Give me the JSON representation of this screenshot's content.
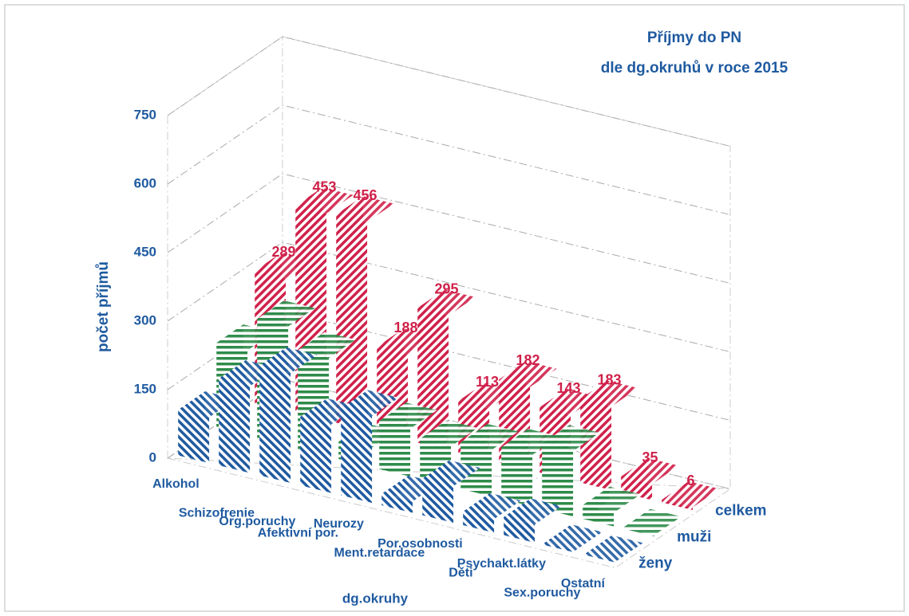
{
  "chart_data": {
    "type": "bar3d",
    "title": "Příjmy do PN",
    "subtitle": "dle dg.okruhů v roce 2015",
    "x_label": "dg.okruhy",
    "y_label": "počet příjmů",
    "categories": [
      "Alkohol",
      "Schizofrenie",
      "Org.poruchy",
      "Afektivní por.",
      "Neurozy",
      "Ment.retardace",
      "Por.osobnosti",
      "Děti",
      "Psychakt.látky",
      "Sex.poruchy",
      "Ostatní"
    ],
    "series": [
      {
        "name": "ženy",
        "color": "#1f5aa0",
        "values": [
          100,
          190,
          240,
          150,
          190,
          25,
          80,
          30,
          40,
          5,
          3
        ]
      },
      {
        "name": "muži",
        "color": "#2e8b4a",
        "values": [
          189,
          263,
          216,
          38,
          105,
          88,
          102,
          113,
          143,
          30,
          3
        ]
      },
      {
        "name": "celkem",
        "color": "#d0214a",
        "values": [
          289,
          453,
          456,
          188,
          295,
          113,
          182,
          143,
          183,
          35,
          6
        ],
        "data_labels": true
      }
    ],
    "ylim": [
      0,
      750
    ],
    "yticks": [
      0,
      150,
      300,
      450,
      600,
      750
    ],
    "grid": true
  }
}
